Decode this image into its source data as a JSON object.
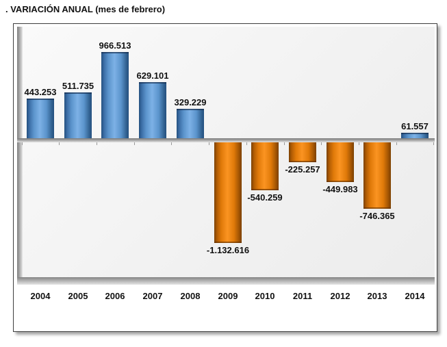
{
  "page": {
    "heading": ". VARIACIÓN ANUAL (mes de febrero)"
  },
  "chart_data": {
    "type": "bar",
    "title": ". VARIACIÓN ANUAL (mes de febrero)",
    "categories": [
      "2004",
      "2005",
      "2006",
      "2007",
      "2008",
      "2009",
      "2010",
      "2011",
      "2012",
      "2013",
      "2014"
    ],
    "values": [
      443253,
      511735,
      966513,
      629101,
      329229,
      -1132616,
      -540259,
      -225257,
      -449983,
      -746365,
      61557
    ],
    "value_labels": [
      "443.253",
      "511.735",
      "966.513",
      "629.101",
      "329.229",
      "-1.132.616",
      "-540.259",
      "-225.257",
      "-449.983",
      "-746.365",
      "61.557"
    ],
    "xlabel": "",
    "ylabel": "",
    "ylim": [
      -1300000,
      1100000
    ],
    "grid": false,
    "legend": null,
    "data_labels": true,
    "colors": {
      "positive_dark": "#24507f",
      "positive_mid": "#5b94cc",
      "positive_light": "#7db1e6",
      "negative_dark": "#7a4000",
      "negative_mid": "#e07a09",
      "negative_light": "#fb9422",
      "axis_gray": "#989898",
      "label_text": "#111111"
    }
  }
}
